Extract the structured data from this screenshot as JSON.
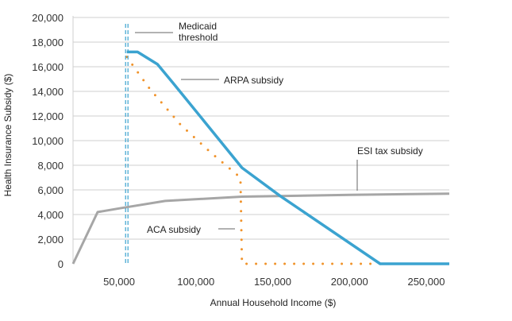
{
  "chart_data": {
    "type": "line",
    "xlabel": "Annual Household Income ($)",
    "ylabel": "Health Insurance Subsidy ($)",
    "xlim": [
      20000,
      265000
    ],
    "ylim": [
      0,
      20000
    ],
    "x_ticks": [
      50000,
      100000,
      150000,
      200000,
      250000
    ],
    "x_tick_labels": [
      "50,000",
      "100,000",
      "150,000",
      "200,000",
      "250,000"
    ],
    "y_ticks": [
      0,
      2000,
      4000,
      6000,
      8000,
      10000,
      12000,
      14000,
      16000,
      18000,
      20000
    ],
    "y_tick_labels": [
      "0",
      "2,000",
      "4,000",
      "6,000",
      "8,000",
      "10,000",
      "12,000",
      "14,000",
      "16,000",
      "18,000",
      "20,000"
    ],
    "grid": "horizontal",
    "medicaid_threshold_x": 55000,
    "series": [
      {
        "key": "arpa",
        "style": "solid",
        "color": "#3BA3D0",
        "points": [
          [
            55000,
            17200
          ],
          [
            62000,
            17200
          ],
          [
            75000,
            16200
          ],
          [
            85000,
            14700
          ],
          [
            130000,
            7800
          ],
          [
            155000,
            5500
          ],
          [
            220000,
            0
          ],
          [
            265000,
            0
          ]
        ]
      },
      {
        "key": "aca",
        "style": "dotted",
        "color": "#F0932B",
        "points": [
          [
            55000,
            16800
          ],
          [
            70000,
            14200
          ],
          [
            90000,
            11300
          ],
          [
            110000,
            9000
          ],
          [
            129000,
            7000
          ],
          [
            130000,
            0
          ],
          [
            265000,
            0
          ]
        ]
      },
      {
        "key": "esi",
        "style": "solid",
        "color": "#A6A6A6",
        "points": [
          [
            20000,
            0
          ],
          [
            36000,
            4200
          ],
          [
            50000,
            4500
          ],
          [
            80000,
            5100
          ],
          [
            130000,
            5450
          ],
          [
            200000,
            5600
          ],
          [
            265000,
            5700
          ]
        ]
      }
    ],
    "annotations": [
      {
        "key": "medicaid",
        "lines": [
          "Medicaid",
          "threshold"
        ]
      },
      {
        "key": "arpa",
        "lines": [
          "ARPA subsidy"
        ]
      },
      {
        "key": "esi",
        "lines": [
          "ESI tax subsidy"
        ]
      },
      {
        "key": "aca",
        "lines": [
          "ACA subsidy"
        ]
      }
    ]
  }
}
